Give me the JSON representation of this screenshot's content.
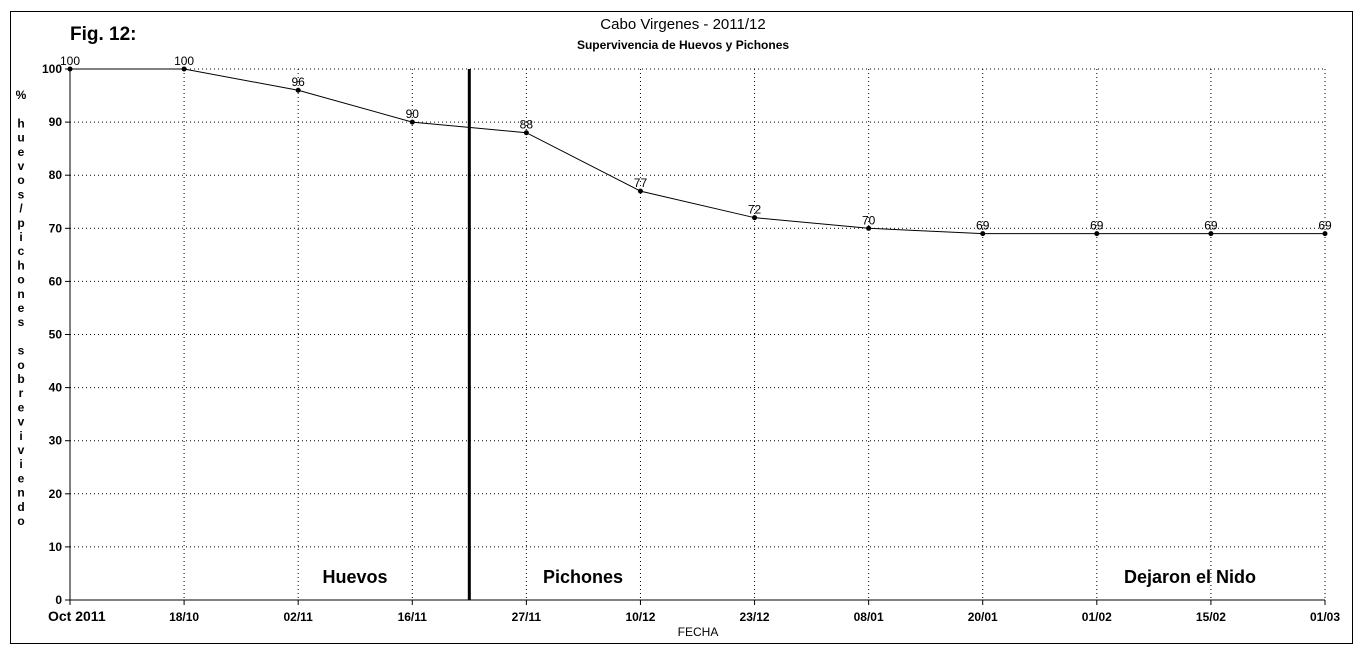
{
  "figure_label": "Fig. 12:",
  "chart_data": {
    "type": "line",
    "title": "Cabo Virgenes - 2011/12",
    "subtitle": "Supervivencia de Huevos y Pichones",
    "xlabel": "FECHA",
    "ylabel": "% huevos/pichones sobreviviendo",
    "ylabel_lines": [
      "%",
      "",
      "h",
      "u",
      "e",
      "v",
      "o",
      "s",
      "/",
      "p",
      "i",
      "c",
      "h",
      "o",
      "n",
      "e",
      "s",
      "",
      "s",
      "o",
      "b",
      "r",
      "e",
      "v",
      "i",
      "v",
      "i",
      "e",
      "n",
      "d",
      "o"
    ],
    "categories": [
      "Oct 2011",
      "18/10",
      "02/11",
      "16/11",
      "27/11",
      "10/12",
      "23/12",
      "08/01",
      "20/01",
      "01/02",
      "15/02",
      "01/03"
    ],
    "values": [
      100,
      100,
      96,
      90,
      88,
      77,
      72,
      70,
      69,
      69,
      69,
      69
    ],
    "ylim": [
      0,
      100
    ],
    "yticks": [
      0,
      10,
      20,
      30,
      40,
      50,
      60,
      70,
      80,
      90,
      100
    ],
    "grid": true,
    "divider_after_category_index": 3.5,
    "regions": [
      "Huevos",
      "Pichones",
      "Dejaron el Nido"
    ]
  }
}
